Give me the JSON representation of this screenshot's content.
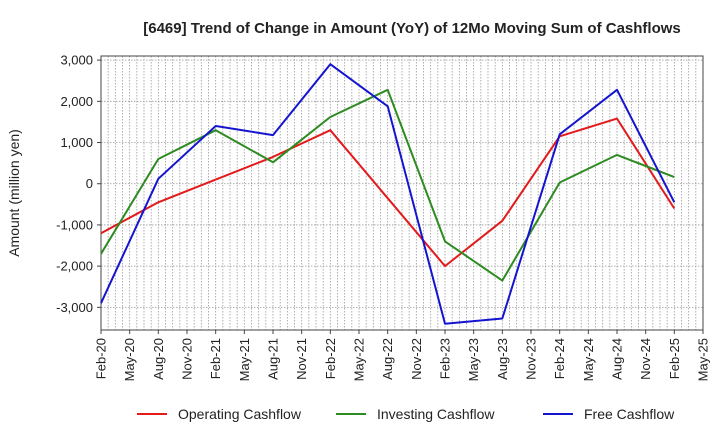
{
  "chart_data": {
    "type": "line",
    "title": "[6469]  Trend of Change in Amount (YoY) of 12Mo Moving Sum of Cashflows",
    "ylabel": "Amount (million yen)",
    "xlabel": "",
    "ylim": [
      -3550,
      3100
    ],
    "yticks": [
      3000,
      2000,
      1000,
      0,
      -1000,
      -2000,
      -3000
    ],
    "ytick_labels": [
      "3,000",
      "2,000",
      "1,000",
      "0",
      "-1,000",
      "-2,000",
      "-3,000"
    ],
    "categories": [
      "Feb-20",
      "May-20",
      "Aug-20",
      "Nov-20",
      "Feb-21",
      "May-21",
      "Aug-21",
      "Nov-21",
      "Feb-22",
      "May-22",
      "Aug-22",
      "Nov-22",
      "Feb-23",
      "May-23",
      "Aug-23",
      "Nov-23",
      "Feb-24",
      "May-24",
      "Aug-24",
      "Nov-24",
      "Feb-25",
      "May-25"
    ],
    "grid": true,
    "legend_position": "bottom",
    "series": [
      {
        "name": "Operating Cashflow",
        "color": "#e31a1c",
        "points": [
          [
            "Feb-20",
            -1200
          ],
          [
            "Aug-20",
            -450
          ],
          [
            "Feb-21",
            100
          ],
          [
            "Aug-21",
            650
          ],
          [
            "Feb-22",
            1300
          ],
          [
            "Aug-22",
            -350
          ],
          [
            "Feb-23",
            -2000
          ],
          [
            "Aug-23",
            -900
          ],
          [
            "Feb-24",
            1150
          ],
          [
            "Aug-24",
            1580
          ],
          [
            "Feb-25",
            -600
          ]
        ]
      },
      {
        "name": "Investing Cashflow",
        "color": "#2e8b22",
        "points": [
          [
            "Feb-20",
            -1700
          ],
          [
            "Aug-20",
            600
          ],
          [
            "Feb-21",
            1300
          ],
          [
            "Aug-21",
            520
          ],
          [
            "Feb-22",
            1620
          ],
          [
            "Aug-22",
            2280
          ],
          [
            "Feb-23",
            -1400
          ],
          [
            "Aug-23",
            -2350
          ],
          [
            "Feb-24",
            30
          ],
          [
            "Aug-24",
            700
          ],
          [
            "Feb-25",
            160
          ]
        ]
      },
      {
        "name": "Free Cashflow",
        "color": "#1515d0",
        "points": [
          [
            "Feb-20",
            -2900
          ],
          [
            "Aug-20",
            120
          ],
          [
            "Feb-21",
            1400
          ],
          [
            "Aug-21",
            1180
          ],
          [
            "Feb-22",
            2900
          ],
          [
            "Aug-22",
            1880
          ],
          [
            "Feb-23",
            -3400
          ],
          [
            "Aug-23",
            -3270
          ],
          [
            "Feb-24",
            1200
          ],
          [
            "Aug-24",
            2280
          ],
          [
            "Feb-25",
            -450
          ]
        ]
      }
    ]
  }
}
